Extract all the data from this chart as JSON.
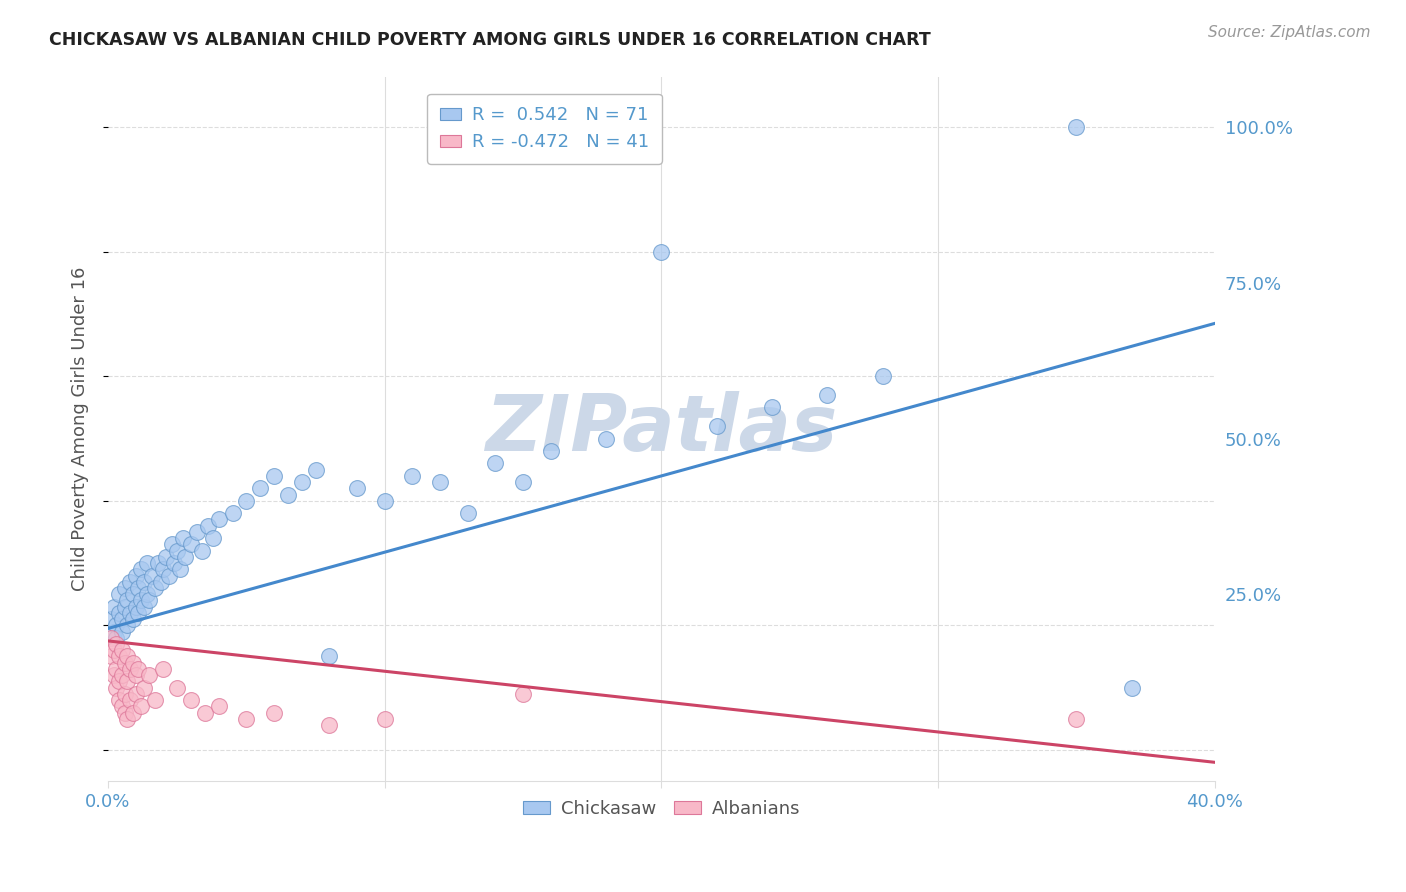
{
  "title": "CHICKASAW VS ALBANIAN CHILD POVERTY AMONG GIRLS UNDER 16 CORRELATION CHART",
  "source": "Source: ZipAtlas.com",
  "ylabel": "Child Poverty Among Girls Under 16",
  "xlim": [
    0.0,
    0.4
  ],
  "ylim": [
    -0.05,
    1.08
  ],
  "chickasaw_R": 0.542,
  "chickasaw_N": 71,
  "albanian_R": -0.472,
  "albanian_N": 41,
  "blue_scatter_color": "#a8c8f0",
  "blue_edge_color": "#6699cc",
  "pink_scatter_color": "#f8b8c8",
  "pink_edge_color": "#dd7799",
  "blue_line_color": "#4488cc",
  "pink_line_color": "#cc4466",
  "watermark_color": "#ccd8e8",
  "right_axis_color": "#5599cc",
  "grid_color": "#dddddd",
  "title_color": "#222222",
  "source_color": "#999999",
  "blue_line_x0": 0.0,
  "blue_line_y0": 0.195,
  "blue_line_x1": 0.4,
  "blue_line_y1": 0.685,
  "pink_line_x0": 0.0,
  "pink_line_y0": 0.175,
  "pink_line_x1": 0.4,
  "pink_line_y1": -0.02,
  "chickasaw_points": [
    [
      0.001,
      0.21
    ],
    [
      0.002,
      0.19
    ],
    [
      0.002,
      0.23
    ],
    [
      0.003,
      0.2
    ],
    [
      0.003,
      0.18
    ],
    [
      0.004,
      0.22
    ],
    [
      0.004,
      0.25
    ],
    [
      0.005,
      0.21
    ],
    [
      0.005,
      0.19
    ],
    [
      0.006,
      0.23
    ],
    [
      0.006,
      0.26
    ],
    [
      0.007,
      0.2
    ],
    [
      0.007,
      0.24
    ],
    [
      0.008,
      0.22
    ],
    [
      0.008,
      0.27
    ],
    [
      0.009,
      0.21
    ],
    [
      0.009,
      0.25
    ],
    [
      0.01,
      0.23
    ],
    [
      0.01,
      0.28
    ],
    [
      0.011,
      0.22
    ],
    [
      0.011,
      0.26
    ],
    [
      0.012,
      0.24
    ],
    [
      0.012,
      0.29
    ],
    [
      0.013,
      0.23
    ],
    [
      0.013,
      0.27
    ],
    [
      0.014,
      0.25
    ],
    [
      0.014,
      0.3
    ],
    [
      0.015,
      0.24
    ],
    [
      0.016,
      0.28
    ],
    [
      0.017,
      0.26
    ],
    [
      0.018,
      0.3
    ],
    [
      0.019,
      0.27
    ],
    [
      0.02,
      0.29
    ],
    [
      0.021,
      0.31
    ],
    [
      0.022,
      0.28
    ],
    [
      0.023,
      0.33
    ],
    [
      0.024,
      0.3
    ],
    [
      0.025,
      0.32
    ],
    [
      0.026,
      0.29
    ],
    [
      0.027,
      0.34
    ],
    [
      0.028,
      0.31
    ],
    [
      0.03,
      0.33
    ],
    [
      0.032,
      0.35
    ],
    [
      0.034,
      0.32
    ],
    [
      0.036,
      0.36
    ],
    [
      0.038,
      0.34
    ],
    [
      0.04,
      0.37
    ],
    [
      0.045,
      0.38
    ],
    [
      0.05,
      0.4
    ],
    [
      0.055,
      0.42
    ],
    [
      0.06,
      0.44
    ],
    [
      0.065,
      0.41
    ],
    [
      0.07,
      0.43
    ],
    [
      0.075,
      0.45
    ],
    [
      0.08,
      0.15
    ],
    [
      0.09,
      0.42
    ],
    [
      0.1,
      0.4
    ],
    [
      0.11,
      0.44
    ],
    [
      0.12,
      0.43
    ],
    [
      0.13,
      0.38
    ],
    [
      0.14,
      0.46
    ],
    [
      0.15,
      0.43
    ],
    [
      0.16,
      0.48
    ],
    [
      0.18,
      0.5
    ],
    [
      0.2,
      0.8
    ],
    [
      0.22,
      0.52
    ],
    [
      0.24,
      0.55
    ],
    [
      0.26,
      0.57
    ],
    [
      0.28,
      0.6
    ],
    [
      0.35,
      1.0
    ],
    [
      0.37,
      0.1
    ]
  ],
  "albanian_points": [
    [
      0.001,
      0.18
    ],
    [
      0.001,
      0.15
    ],
    [
      0.002,
      0.16
    ],
    [
      0.002,
      0.12
    ],
    [
      0.003,
      0.17
    ],
    [
      0.003,
      0.13
    ],
    [
      0.003,
      0.1
    ],
    [
      0.004,
      0.15
    ],
    [
      0.004,
      0.11
    ],
    [
      0.004,
      0.08
    ],
    [
      0.005,
      0.16
    ],
    [
      0.005,
      0.12
    ],
    [
      0.005,
      0.07
    ],
    [
      0.006,
      0.14
    ],
    [
      0.006,
      0.09
    ],
    [
      0.006,
      0.06
    ],
    [
      0.007,
      0.15
    ],
    [
      0.007,
      0.11
    ],
    [
      0.007,
      0.05
    ],
    [
      0.008,
      0.13
    ],
    [
      0.008,
      0.08
    ],
    [
      0.009,
      0.14
    ],
    [
      0.009,
      0.06
    ],
    [
      0.01,
      0.12
    ],
    [
      0.01,
      0.09
    ],
    [
      0.011,
      0.13
    ],
    [
      0.012,
      0.07
    ],
    [
      0.013,
      0.1
    ],
    [
      0.015,
      0.12
    ],
    [
      0.017,
      0.08
    ],
    [
      0.02,
      0.13
    ],
    [
      0.025,
      0.1
    ],
    [
      0.03,
      0.08
    ],
    [
      0.035,
      0.06
    ],
    [
      0.04,
      0.07
    ],
    [
      0.05,
      0.05
    ],
    [
      0.06,
      0.06
    ],
    [
      0.08,
      0.04
    ],
    [
      0.1,
      0.05
    ],
    [
      0.15,
      0.09
    ],
    [
      0.35,
      0.05
    ]
  ]
}
